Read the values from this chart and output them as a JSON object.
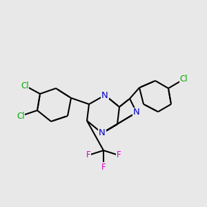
{
  "bg_color": "#e8e8e8",
  "bond_color": "#000000",
  "N_color": "#0000cc",
  "Cl_color": "#00aa00",
  "F_color": "#cc00cc",
  "bond_width": 1.5,
  "dbo": 0.008,
  "font_size": 8.5,
  "fig_w": 3.0,
  "fig_h": 3.0,
  "dpi": 100,
  "xlim": [
    0,
    300
  ],
  "ylim": [
    0,
    300
  ]
}
